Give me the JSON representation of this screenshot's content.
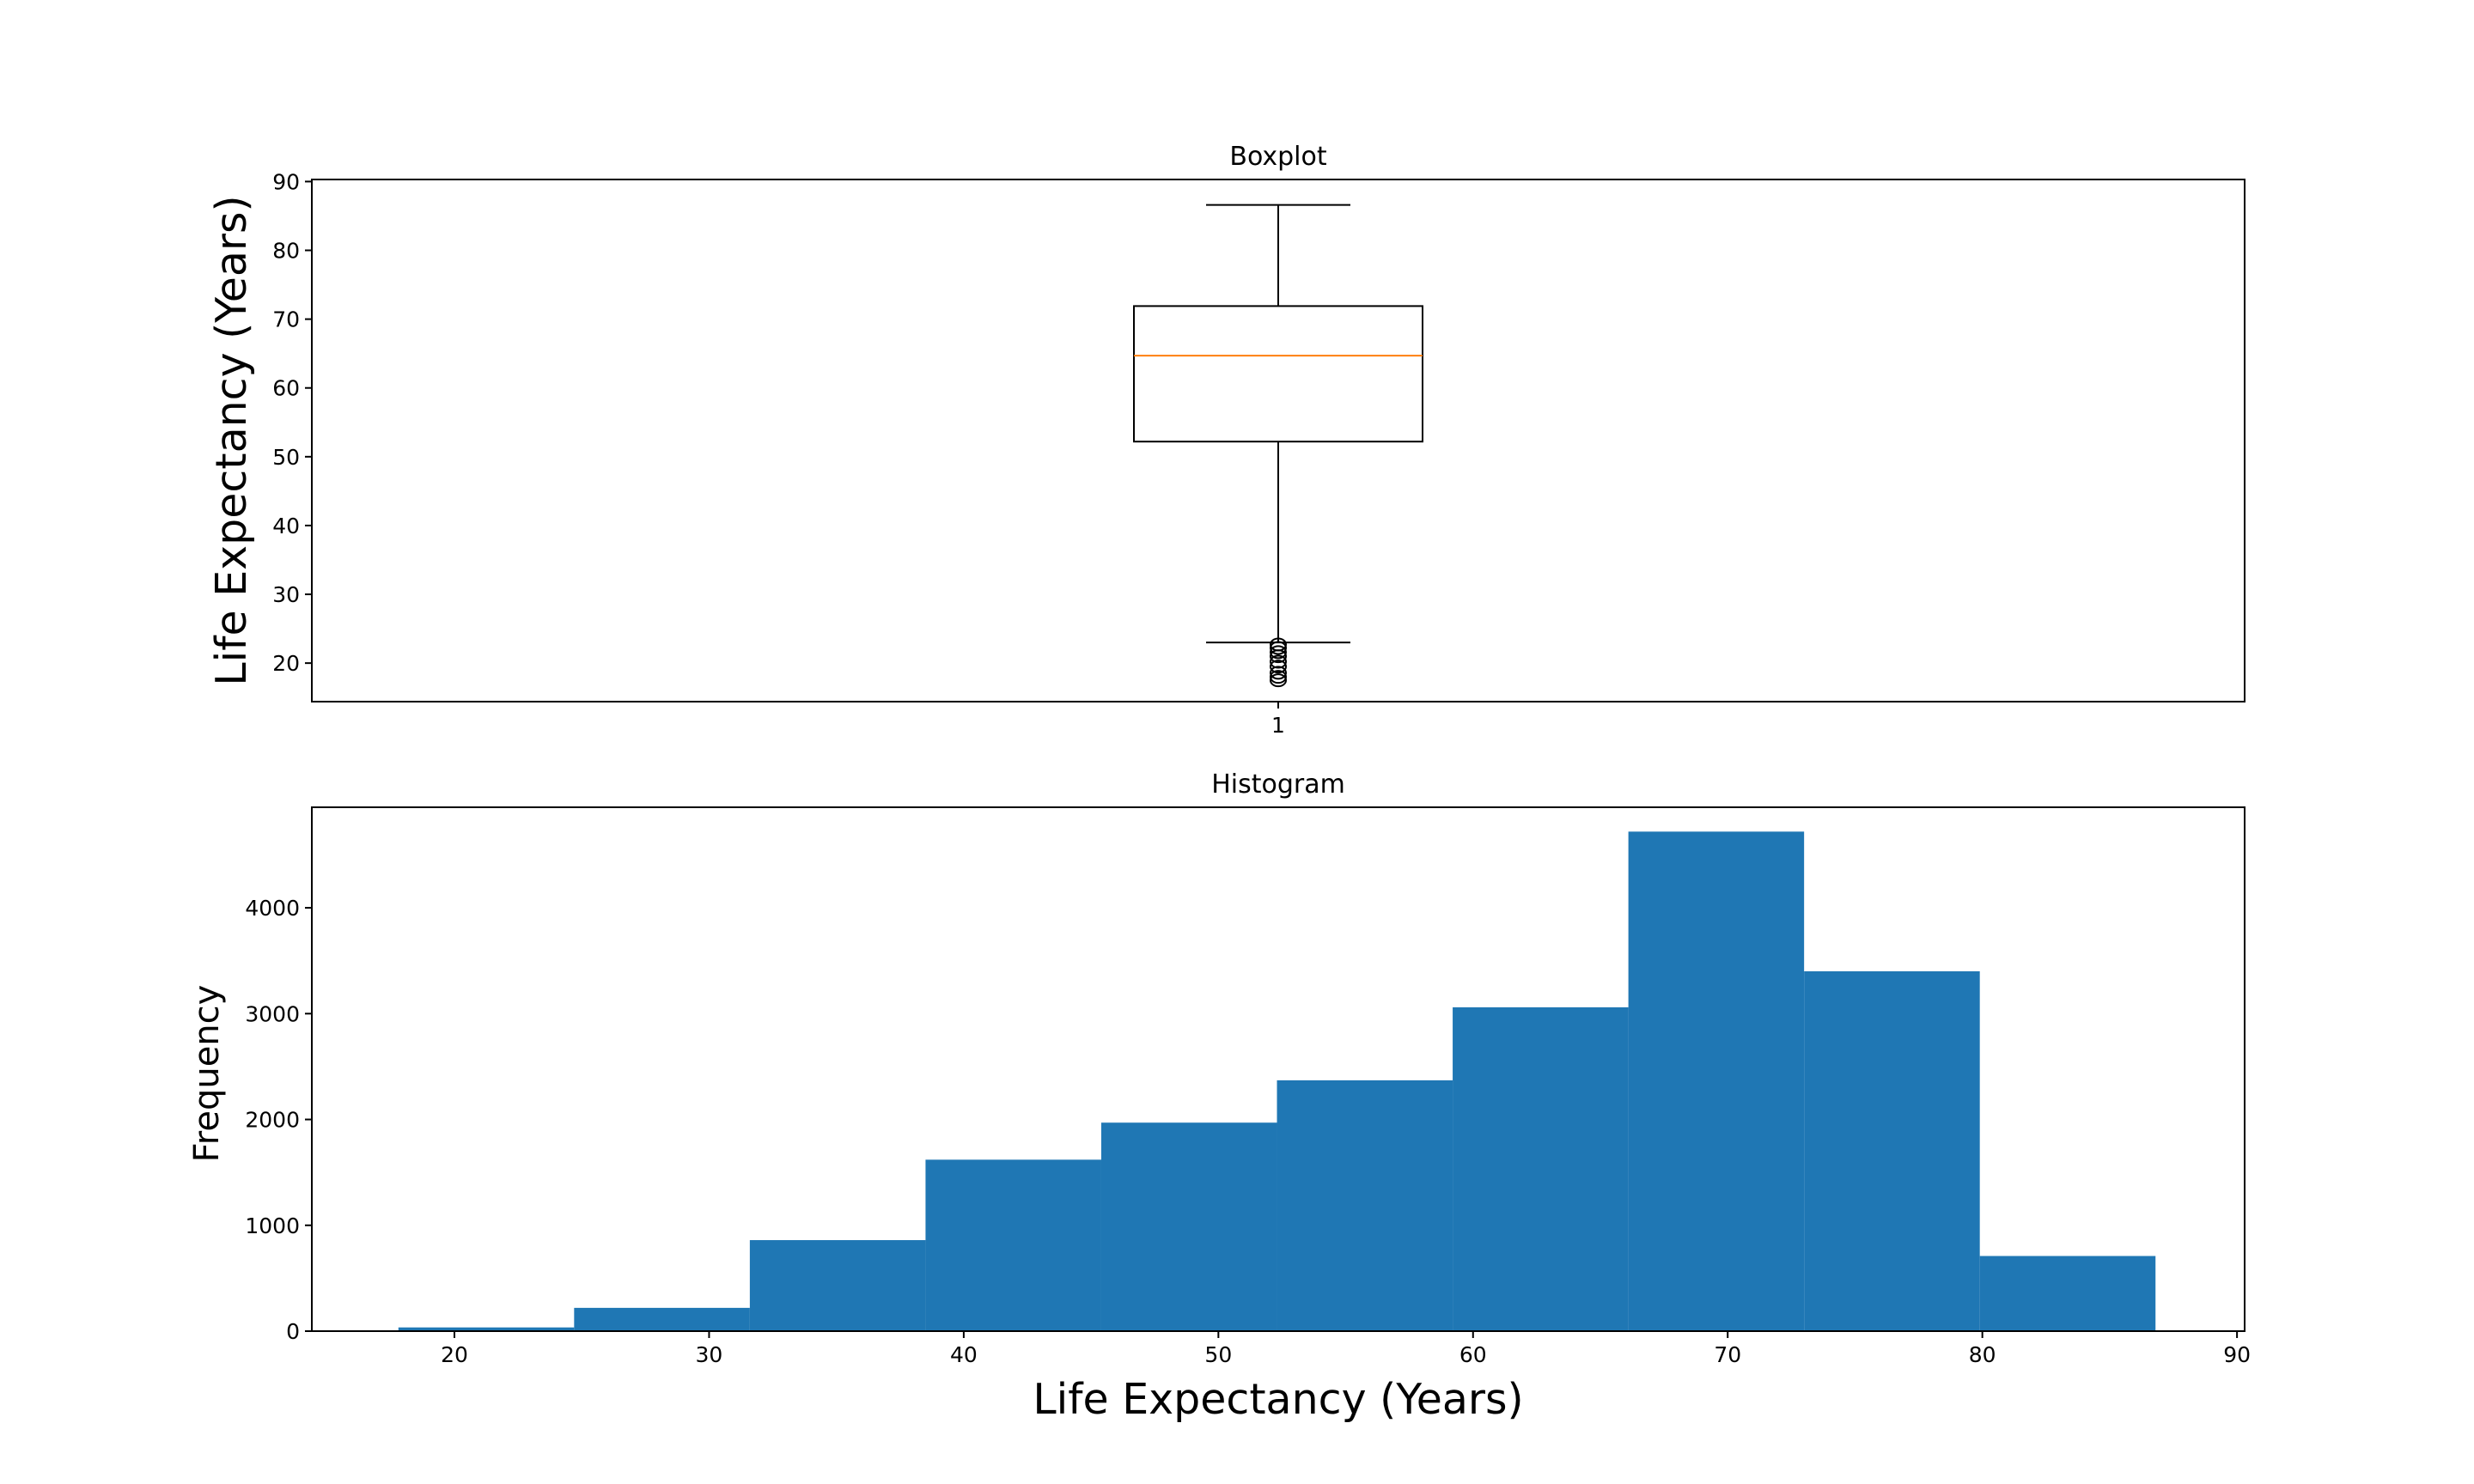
{
  "colors": {
    "bar": "#1f77b4",
    "median": "#ff7f0e",
    "axes": "#000000",
    "background": "#ffffff"
  },
  "chart_data": [
    {
      "type": "boxplot",
      "title": "Boxplot",
      "xlabel": "",
      "ylabel": "Life Expectancy (Years)",
      "categories": [
        "1"
      ],
      "ylim": [
        14.4,
        90.3
      ],
      "yticks": [
        20,
        30,
        40,
        50,
        60,
        70,
        80,
        90
      ],
      "boxes": [
        {
          "category": "1",
          "whisker_low": 23.0,
          "q1": 52.2,
          "median": 64.7,
          "q3": 71.9,
          "whisker_high": 86.6,
          "outliers": [
            17.5,
            18.0,
            18.6,
            19.5,
            20.2,
            21.0,
            21.6,
            22.2,
            22.7
          ]
        }
      ],
      "grid": false
    },
    {
      "type": "histogram",
      "title": "Histogram",
      "xlabel": "Life Expectancy (Years)",
      "ylabel": "Frequency",
      "xlim": [
        14.4,
        90.3
      ],
      "ylim": [
        0,
        4950
      ],
      "xticks": [
        20,
        30,
        40,
        50,
        60,
        70,
        80,
        90
      ],
      "yticks": [
        0,
        1000,
        2000,
        3000,
        4000
      ],
      "bin_edges": [
        17.8,
        24.7,
        31.6,
        38.5,
        45.4,
        52.3,
        59.2,
        66.1,
        73.0,
        79.9,
        86.8
      ],
      "values": [
        35,
        220,
        860,
        1620,
        1970,
        2370,
        3060,
        4720,
        3400,
        710
      ],
      "grid": false
    }
  ]
}
